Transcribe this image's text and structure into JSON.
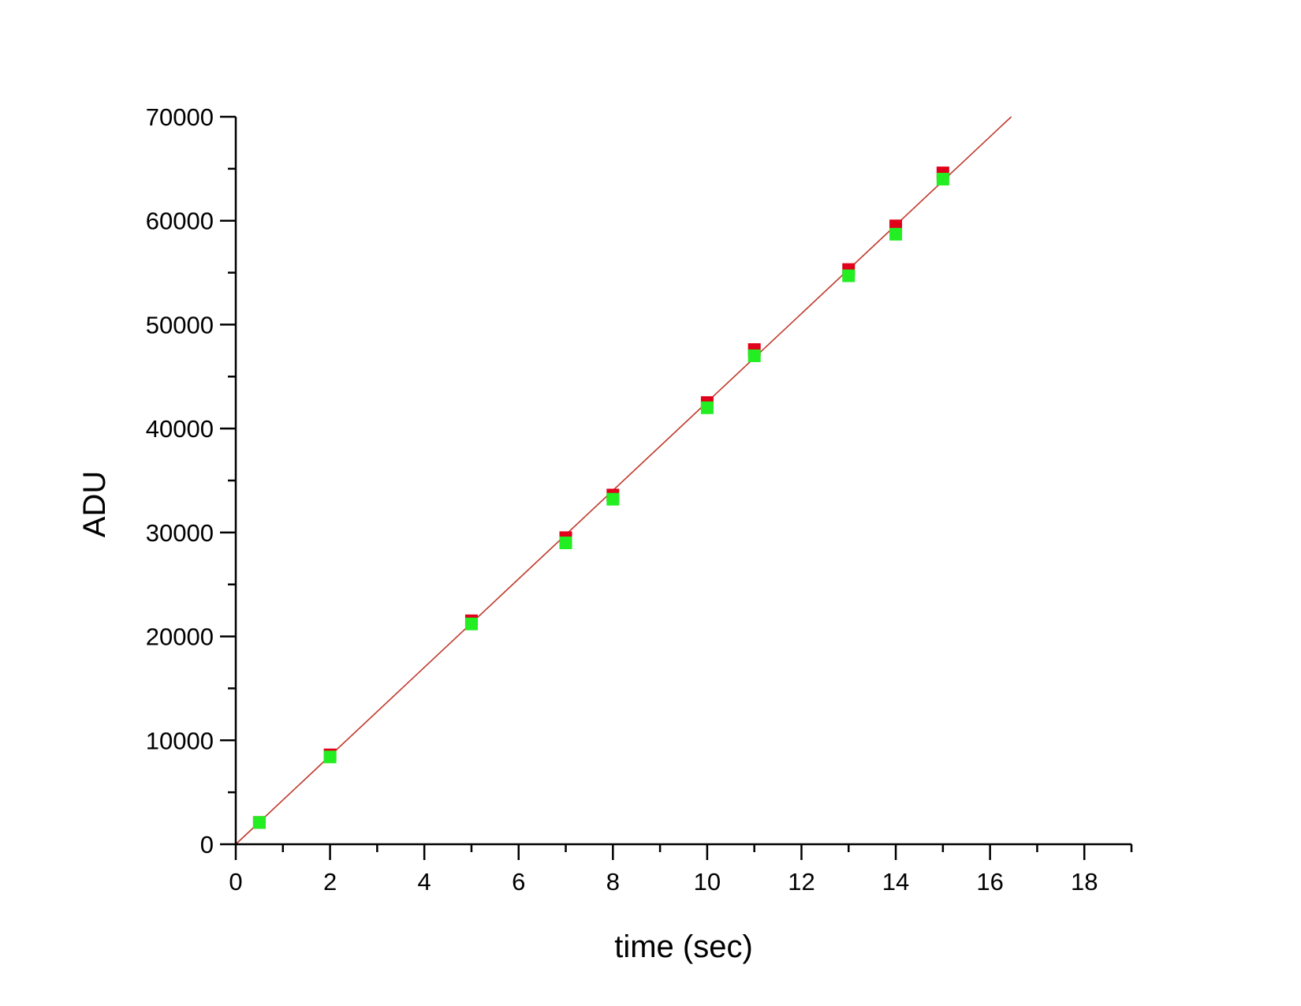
{
  "chart_data": {
    "type": "scatter",
    "title": "",
    "xlabel": "time (sec)",
    "ylabel": "ADU",
    "xlim": [
      0,
      19
    ],
    "ylim": [
      0,
      70000
    ],
    "x_ticks": [
      0,
      2,
      4,
      6,
      8,
      10,
      12,
      14,
      16,
      18
    ],
    "x_tick_labels": [
      "0",
      "2",
      "4",
      "6",
      "8",
      "10",
      "12",
      "14",
      "16",
      "18"
    ],
    "y_ticks": [
      0,
      10000,
      20000,
      30000,
      40000,
      50000,
      60000,
      70000
    ],
    "y_tick_labels": [
      "0",
      "10000",
      "20000",
      "30000",
      "40000",
      "50000",
      "60000",
      "70000"
    ],
    "x_minor_step": 1,
    "y_minor_step": 5000,
    "grid": false,
    "legend": "none",
    "series": [
      {
        "color": "#e0001a",
        "marker": "square",
        "points": [
          {
            "x": 0.5,
            "y": 2100
          },
          {
            "x": 2,
            "y": 8600
          },
          {
            "x": 5,
            "y": 21500
          },
          {
            "x": 7,
            "y": 29500
          },
          {
            "x": 8,
            "y": 33600
          },
          {
            "x": 10,
            "y": 42500
          },
          {
            "x": 11,
            "y": 47600
          },
          {
            "x": 13,
            "y": 55300
          },
          {
            "x": 14,
            "y": 59500
          },
          {
            "x": 15,
            "y": 64600
          }
        ]
      },
      {
        "color": "#22ee22",
        "marker": "square",
        "points": [
          {
            "x": 0.5,
            "y": 2100
          },
          {
            "x": 2,
            "y": 8400
          },
          {
            "x": 5,
            "y": 21200
          },
          {
            "x": 7,
            "y": 29000
          },
          {
            "x": 8,
            "y": 33200
          },
          {
            "x": 10,
            "y": 42000
          },
          {
            "x": 11,
            "y": 47000
          },
          {
            "x": 13,
            "y": 54700
          },
          {
            "x": 14,
            "y": 58700
          },
          {
            "x": 15,
            "y": 64000
          }
        ]
      }
    ],
    "fit_line": {
      "color": "#c0392b",
      "x": [
        0,
        16.45
      ],
      "y": [
        0,
        70000
      ]
    }
  }
}
